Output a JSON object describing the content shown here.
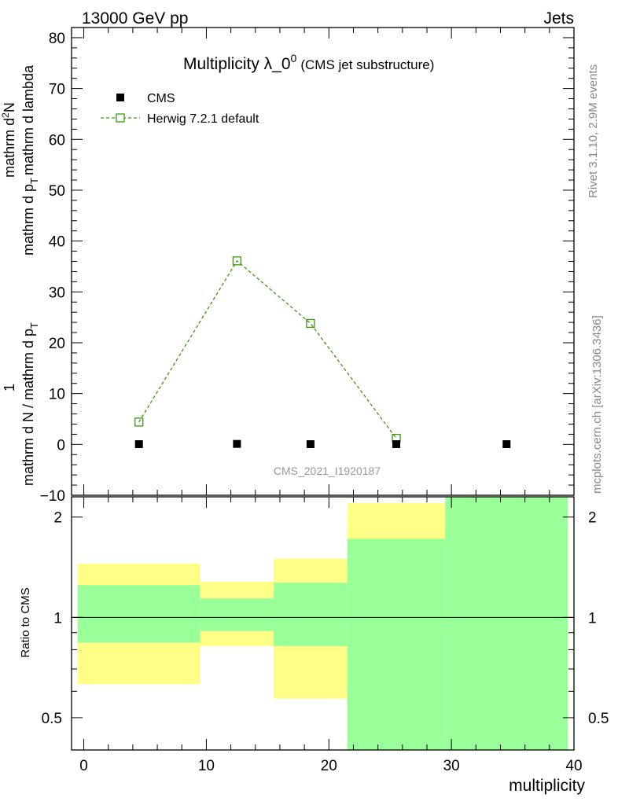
{
  "header": {
    "left": "13000 GeV pp",
    "right": "Jets"
  },
  "side_labels": {
    "rivet": "Rivet 3.1.10,  2.9M events",
    "mcplots": "mcplots.cern.ch [arXiv:1306.3436]"
  },
  "chart_data": [
    {
      "type": "scatter",
      "title": "Multiplicity λ_0",
      "title_superscript": "0",
      "subtitle": "(CMS jet substructure)",
      "watermark": "CMS_2021_I1920187",
      "ylabel": {
        "numerator": "1",
        "denominator": "mathrm d N / mathrm d p",
        "denominator_sub": "T",
        "derivative_numerator": "mathrm d",
        "derivative_numerator_sup": "2",
        "derivative_numerator_tail": "N",
        "derivative_denominator": "mathrm d p",
        "derivative_denominator_sub": "T",
        "derivative_denominator_tail": "mathrm d lambda"
      },
      "xlim": [
        -1,
        40
      ],
      "ylim": [
        -10,
        82
      ],
      "y_ticks": [
        -10,
        0,
        10,
        20,
        30,
        40,
        50,
        60,
        70,
        80
      ],
      "legend_position": "top-left",
      "series": [
        {
          "name": "CMS",
          "marker": "filled-square",
          "color": "#000000",
          "x": [
            4.5,
            12.5,
            18.5,
            25.5,
            34.5
          ],
          "y": [
            0.05,
            0.1,
            0.05,
            0.05,
            0.05
          ]
        },
        {
          "name": "Herwig 7.2.1 default",
          "marker": "open-square",
          "line": "dashed",
          "color": "#3a9a0a",
          "x": [
            4.5,
            12.5,
            18.5,
            25.5
          ],
          "y": [
            4.4,
            36.1,
            23.8,
            1.2
          ]
        }
      ]
    },
    {
      "type": "area",
      "ylabel": "Ratio to CMS",
      "xlabel": "multiplicity",
      "xlim": [
        -1,
        40
      ],
      "ylim": [
        0.4,
        2.3
      ],
      "log_y": true,
      "y_ticks": [
        0.5,
        1,
        2
      ],
      "x_ticks": [
        0,
        10,
        20,
        30,
        40
      ],
      "reference_line": 1,
      "colors": {
        "stat_band": "#99ff99",
        "total_band": "#ffff88"
      },
      "bins": [
        {
          "x_low": -0.5,
          "x_high": 9.5,
          "yellow": [
            0.63,
            1.45
          ],
          "green": [
            0.84,
            1.25
          ]
        },
        {
          "x_low": 9.5,
          "x_high": 15.5,
          "yellow": [
            0.82,
            1.28
          ],
          "green": [
            0.91,
            1.14
          ]
        },
        {
          "x_low": 15.5,
          "x_high": 21.5,
          "yellow": [
            0.57,
            1.5
          ],
          "green": [
            0.82,
            1.27
          ]
        },
        {
          "x_low": 21.5,
          "x_high": 29.5,
          "yellow": [
            0.4,
            2.2
          ],
          "green": [
            0.4,
            1.72
          ]
        },
        {
          "x_low": 29.5,
          "x_high": 39.5,
          "yellow": [
            0.4,
            2.3
          ],
          "green": [
            0.4,
            2.3
          ]
        }
      ]
    }
  ]
}
